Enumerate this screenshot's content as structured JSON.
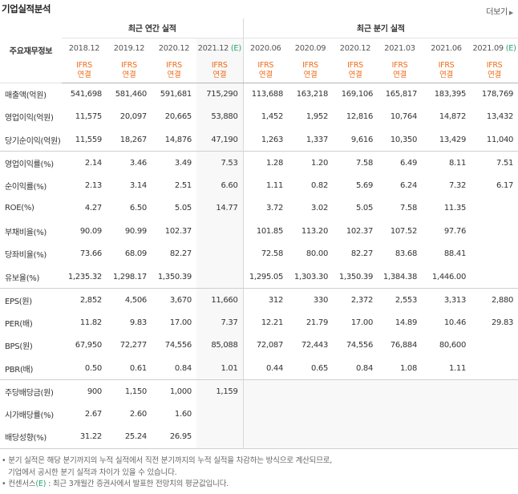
{
  "header": {
    "title": "기업실적분석",
    "more_label": "더보기"
  },
  "table": {
    "row_header_label": "주요재무정보",
    "annual_label": "최근 연간 실적",
    "quarterly_label": "최근 분기 실적",
    "periods": [
      "2018.12",
      "2019.12",
      "2020.12",
      "2021.12",
      "2020.06",
      "2020.09",
      "2020.12",
      "2021.03",
      "2021.06",
      "2021.09"
    ],
    "estimate_mark": "(E)",
    "ifrs_top": "IFRS",
    "ifrs_bottom": "연결",
    "rows": [
      {
        "label": "매출액(억원)",
        "values": [
          "541,698",
          "581,460",
          "591,681",
          "715,290",
          "113,688",
          "163,218",
          "169,106",
          "165,817",
          "183,395",
          "178,769"
        ]
      },
      {
        "label": "영업이익(억원)",
        "values": [
          "11,575",
          "20,097",
          "20,665",
          "53,880",
          "1,452",
          "1,952",
          "12,816",
          "10,764",
          "14,872",
          "13,432"
        ]
      },
      {
        "label": "당기순이익(억원)",
        "values": [
          "11,559",
          "18,267",
          "14,876",
          "47,190",
          "1,263",
          "1,337",
          "9,616",
          "10,350",
          "13,429",
          "11,040"
        ]
      },
      {
        "label": "영업이익률(%)",
        "values": [
          "2.14",
          "3.46",
          "3.49",
          "7.53",
          "1.28",
          "1.20",
          "7.58",
          "6.49",
          "8.11",
          "7.51"
        ]
      },
      {
        "label": "순이익률(%)",
        "values": [
          "2.13",
          "3.14",
          "2.51",
          "6.60",
          "1.11",
          "0.82",
          "5.69",
          "6.24",
          "7.32",
          "6.17"
        ]
      },
      {
        "label": "ROE(%)",
        "values": [
          "4.27",
          "6.50",
          "5.05",
          "14.77",
          "3.72",
          "3.02",
          "5.05",
          "7.58",
          "11.35",
          ""
        ]
      },
      {
        "label": "부채비율(%)",
        "values": [
          "90.09",
          "90.99",
          "102.37",
          "",
          "101.85",
          "113.20",
          "102.37",
          "107.52",
          "97.76",
          ""
        ]
      },
      {
        "label": "당좌비율(%)",
        "values": [
          "73.66",
          "68.09",
          "82.27",
          "",
          "72.58",
          "80.00",
          "82.27",
          "83.68",
          "88.41",
          ""
        ]
      },
      {
        "label": "유보율(%)",
        "values": [
          "1,235.32",
          "1,298.17",
          "1,350.39",
          "",
          "1,295.05",
          "1,303.30",
          "1,350.39",
          "1,384.38",
          "1,446.00",
          ""
        ]
      },
      {
        "label": "EPS(원)",
        "values": [
          "2,852",
          "4,506",
          "3,670",
          "11,660",
          "312",
          "330",
          "2,372",
          "2,553",
          "3,313",
          "2,880"
        ]
      },
      {
        "label": "PER(배)",
        "values": [
          "11.82",
          "9.83",
          "17.00",
          "7.37",
          "12.21",
          "21.79",
          "17.00",
          "14.89",
          "10.46",
          "29.83"
        ]
      },
      {
        "label": "BPS(원)",
        "values": [
          "67,950",
          "72,277",
          "74,556",
          "85,088",
          "72,087",
          "72,443",
          "74,556",
          "76,884",
          "80,600",
          ""
        ]
      },
      {
        "label": "PBR(배)",
        "values": [
          "0.50",
          "0.61",
          "0.84",
          "1.01",
          "0.44",
          "0.65",
          "0.84",
          "1.08",
          "1.11",
          ""
        ]
      },
      {
        "label": "주당배당금(원)",
        "values": [
          "900",
          "1,150",
          "1,000",
          "1,159",
          "",
          "",
          "",
          "",
          "",
          ""
        ]
      },
      {
        "label": "시가배당률(%)",
        "values": [
          "2.67",
          "2.60",
          "1.60",
          "",
          "",
          "",
          "",
          "",
          "",
          ""
        ]
      },
      {
        "label": "배당성향(%)",
        "values": [
          "31.22",
          "25.24",
          "26.95",
          "",
          "",
          "",
          "",
          "",
          "",
          ""
        ]
      }
    ],
    "group_starts": [
      3,
      9,
      13
    ],
    "blank_cells": {
      "13": [
        4,
        5,
        6,
        7,
        8,
        9
      ],
      "14": [
        4,
        5,
        6,
        7,
        8,
        9
      ],
      "15": [
        4,
        5,
        6,
        7,
        8,
        9
      ]
    }
  },
  "notes": {
    "line1": "분기 실적은 해당 분기까지의 누적 실적에서 직전 분기까지의 누적 실적을 차감하는 방식으로 계산되므로,",
    "line2": "기업에서 공시한 분기 실적과 차이가 있을 수 있습니다.",
    "line3_pre": "컨센서스",
    "line3_mark": "(E)",
    "line3_post": ": 최근 3개월간 증권사에서 발표한 전망치의 평균값입니다."
  }
}
